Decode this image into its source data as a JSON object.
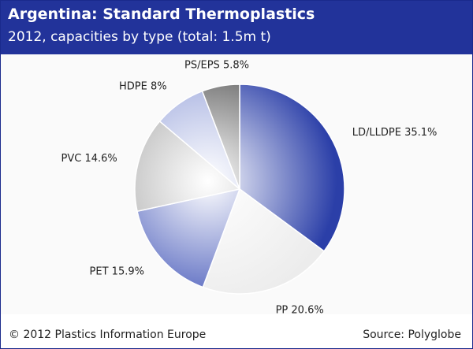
{
  "header": {
    "title": "Argentina: Standard Thermoplastics",
    "subtitle": "2012, capacities by type (total: 1.5m t)"
  },
  "footer": {
    "copyright": "© 2012 Plastics Information Europe",
    "source": "Source: Polyglobe"
  },
  "colors": {
    "header_bg": "#22339a",
    "header_text": "#ffffff"
  },
  "chart_data": {
    "type": "pie",
    "title": "Argentina: Standard Thermoplastics",
    "subtitle": "2012, capacities by type (total: 1.5m t)",
    "unit": "%",
    "slices": [
      {
        "name": "LD/LLDPE",
        "value": 35.1,
        "label": "LD/LLDPE 35.1%",
        "color": "#2b3fa8"
      },
      {
        "name": "PP",
        "value": 20.6,
        "label": "PP 20.6%",
        "color": "#ececec"
      },
      {
        "name": "PET",
        "value": 15.9,
        "label": "PET 15.9%",
        "color": "#4d5fbc"
      },
      {
        "name": "PVC",
        "value": 14.6,
        "label": "PVC 14.6%",
        "color": "#a7a7a7"
      },
      {
        "name": "HDPE",
        "value": 8.0,
        "label": "HDPE 8%",
        "color": "#9aa6dc"
      },
      {
        "name": "PS/EPS",
        "value": 5.8,
        "label": "PS/EPS 5.8%",
        "color": "#5c5c5c"
      }
    ]
  }
}
